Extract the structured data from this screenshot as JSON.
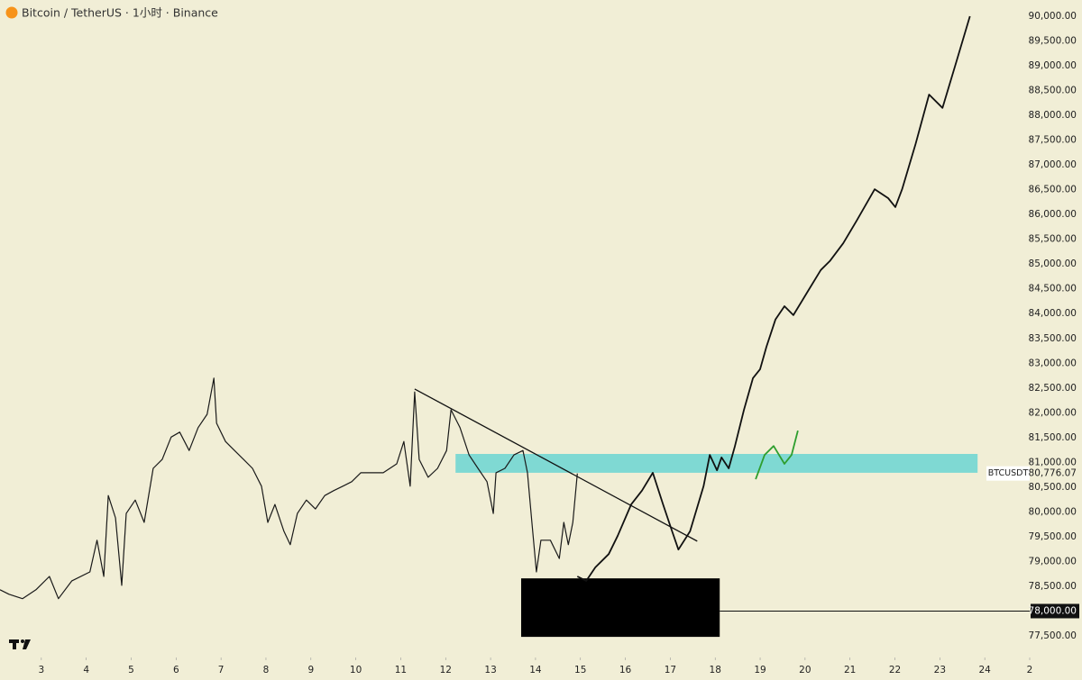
{
  "chart_data": {
    "type": "line",
    "title": "Bitcoin / TetherUS · 1小时 · Binance",
    "xlim": [
      2.08,
      25.0
    ],
    "ylim": [
      77064,
      90327
    ],
    "grid": false,
    "xticks": [
      3,
      4,
      5,
      6,
      7,
      8,
      9,
      10,
      11,
      12,
      13,
      14,
      15,
      16,
      17,
      18,
      19,
      20,
      21,
      22,
      23,
      24,
      {
        "value": 25,
        "label": "2"
      }
    ],
    "yticks": [
      {
        "value": 77500,
        "label": "77,500.00"
      },
      {
        "value": 78000,
        "label": "78,000.00"
      },
      {
        "value": 78500,
        "label": "78,500.00"
      },
      {
        "value": 79000,
        "label": "79,000.00"
      },
      {
        "value": 79500,
        "label": "79,500.00"
      },
      {
        "value": 80000,
        "label": "80,000.00"
      },
      {
        "value": 80500,
        "label": "80,500.00"
      },
      {
        "value": 81000,
        "label": "81,000.00"
      },
      {
        "value": 81500,
        "label": "81,500.00"
      },
      {
        "value": 82000,
        "label": "82,000.00"
      },
      {
        "value": 82500,
        "label": "82,500.00"
      },
      {
        "value": 83000,
        "label": "83,000.00"
      },
      {
        "value": 83500,
        "label": "83,500.00"
      },
      {
        "value": 84000,
        "label": "84,000.00"
      },
      {
        "value": 84500,
        "label": "84,500.00"
      },
      {
        "value": 85000,
        "label": "85,000.00"
      },
      {
        "value": 85500,
        "label": "85,500.00"
      },
      {
        "value": 86000,
        "label": "86,000.00"
      },
      {
        "value": 86500,
        "label": "86,500.00"
      },
      {
        "value": 87000,
        "label": "87,000.00"
      },
      {
        "value": 87500,
        "label": "87,500.00"
      },
      {
        "value": 88000,
        "label": "88,000.00"
      },
      {
        "value": 88500,
        "label": "88,500.00"
      },
      {
        "value": 89000,
        "label": "89,000.00"
      },
      {
        "value": 89500,
        "label": "89,500.00"
      },
      {
        "value": 90000,
        "label": "90,000.00"
      }
    ],
    "series": [
      {
        "name": "BTCUSDT",
        "color": "#1a1a1a",
        "x": [
          2.08,
          2.28,
          2.58,
          2.88,
          3.18,
          3.38,
          3.68,
          4.08,
          4.24,
          4.39,
          4.49,
          4.65,
          4.79,
          4.89,
          5.09,
          5.29,
          5.49,
          5.69,
          5.89,
          6.08,
          6.29,
          6.49,
          6.69,
          6.84,
          6.9,
          7.1,
          7.3,
          7.5,
          7.7,
          7.9,
          8.04,
          8.2,
          8.4,
          8.54,
          8.7,
          8.9,
          9.1,
          9.31,
          9.51,
          9.71,
          9.91,
          10.11,
          10.31,
          10.61,
          10.91,
          11.07,
          11.21,
          11.31,
          11.41,
          11.61,
          11.82,
          12.02,
          12.12,
          12.32,
          12.52,
          12.72,
          12.92,
          13.06,
          13.12,
          13.32,
          13.52,
          13.72,
          13.82,
          13.92,
          14.02,
          14.12,
          14.33,
          14.53,
          14.63,
          14.73,
          14.83,
          14.93
        ],
        "values": [
          78430,
          78340,
          78250,
          78430,
          78700,
          78250,
          78610,
          78790,
          79430,
          78700,
          80330,
          79880,
          78520,
          79970,
          80240,
          79790,
          80880,
          81060,
          81510,
          81610,
          81240,
          81700,
          81970,
          82700,
          81790,
          81420,
          81240,
          81060,
          80880,
          80520,
          79790,
          80150,
          79610,
          79340,
          79970,
          80240,
          80060,
          80330,
          80430,
          80520,
          80610,
          80790,
          80790,
          80790,
          80970,
          81420,
          80520,
          82420,
          81060,
          80700,
          80880,
          81240,
          82060,
          81700,
          81150,
          80880,
          80610,
          79970,
          80790,
          80880,
          81150,
          81240,
          80790,
          79790,
          78790,
          79430,
          79430,
          79060,
          79790,
          79340,
          79790,
          80776.07
        ]
      },
      {
        "color": "#111111",
        "x": [
          14.93,
          15.13,
          15.33,
          15.63,
          15.83,
          16.13,
          16.37,
          16.61,
          16.84,
          17.04,
          17.18,
          17.44,
          17.74,
          17.88,
          18.04,
          18.14,
          18.3,
          18.44,
          18.64,
          18.84,
          19.0,
          19.14,
          19.34,
          19.54,
          19.74,
          20.04,
          20.35,
          20.55,
          20.85,
          21.15,
          21.55,
          21.85,
          22.01,
          22.16,
          22.46,
          22.76,
          23.06,
          23.36,
          23.67
        ],
        "values": [
          78700,
          78610,
          78880,
          79150,
          79520,
          80150,
          80430,
          80790,
          80150,
          79610,
          79240,
          79610,
          80520,
          81150,
          80840,
          81100,
          80880,
          81330,
          82060,
          82700,
          82880,
          83330,
          83880,
          84150,
          83970,
          84420,
          84880,
          85060,
          85420,
          85880,
          86510,
          86330,
          86150,
          86510,
          87420,
          88420,
          88150,
          89060,
          90000
        ]
      },
      {
        "color": "#2e9e2e",
        "x": [
          18.9,
          19.1,
          19.3,
          19.54,
          19.7,
          19.84
        ],
        "values": [
          80660,
          81150,
          81330,
          80970,
          81150,
          81640
        ]
      }
    ],
    "trendline": {
      "color": "#111111",
      "x": [
        11.31,
        17.6
      ],
      "values": [
        82480,
        79410
      ]
    },
    "zones": [
      {
        "color": "#7fd9d3",
        "x": [
          12.22,
          23.84
        ],
        "values": [
          80790,
          81170
        ]
      },
      {
        "color": "#000000",
        "x": [
          13.68,
          18.1
        ],
        "values": [
          77480,
          78660
        ]
      }
    ],
    "level": {
      "x": 18.1,
      "value": 78000,
      "label": "78,000.00"
    },
    "last_price": {
      "symbol": "BTCUSDT",
      "value": 80776.07,
      "label": "80,776.07"
    }
  }
}
